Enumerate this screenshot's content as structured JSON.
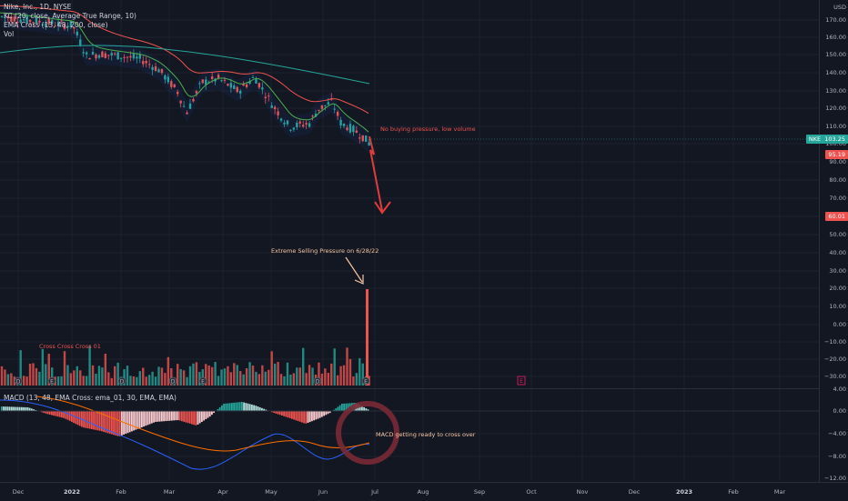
{
  "legend": {
    "title": "Nike, Inc., 1D, NYSE",
    "kc": "KC (20, close, Average True Range, 10)",
    "ema": "EMA Cross (13, 48, 200, close)",
    "vol": "Vol",
    "macd": "MACD (13, 48, EMA Cross: ema_01, 30, EMA, EMA)"
  },
  "price_axis": {
    "currency": "USD",
    "ticks": [
      "170.00",
      "160.00",
      "150.00",
      "140.00",
      "130.00",
      "120.00",
      "110.00",
      "100.00",
      "90.00",
      "80.00",
      "70.00",
      "60.00",
      "50.00",
      "40.00",
      "30.00",
      "20.00",
      "10.00",
      "0.00",
      "−10.00",
      "−20.00",
      "−30.00"
    ],
    "last_symbol": "NKE",
    "last_price": "103.25",
    "label_low": "95.19",
    "label_target": "60.01"
  },
  "macd_axis": {
    "ticks": [
      "4.00",
      "0.00",
      "−4.00",
      "−8.00",
      "−12.00"
    ]
  },
  "time_axis": {
    "labels": [
      "Dec",
      "2022",
      "Feb",
      "Mar",
      "Apr",
      "May",
      "Jun",
      "Jul",
      "Aug",
      "Sep",
      "Oct",
      "Nov",
      "Dec",
      "2023",
      "Feb",
      "Mar"
    ]
  },
  "annotations": {
    "no_buying": "No buying pressure, low volume",
    "extreme_selling": "Extreme Selling Pressure on 6/28/22",
    "cross_label": "Cross Cross Cross 01",
    "macd_note": "MACD getting ready to cross over"
  },
  "markers": {
    "earnings": "E",
    "dividend": "D"
  },
  "colors": {
    "background": "#131722",
    "up": "#26a69a",
    "down": "#ef5350",
    "arrow": "#e03c3c",
    "circle": "#7a2a35",
    "ema_fast": "#4caf50",
    "ema_mid": "#ef5350",
    "ema_slow": "#26a69a",
    "macd_line": "#2962ff",
    "signal_line": "#ff6d00"
  }
}
